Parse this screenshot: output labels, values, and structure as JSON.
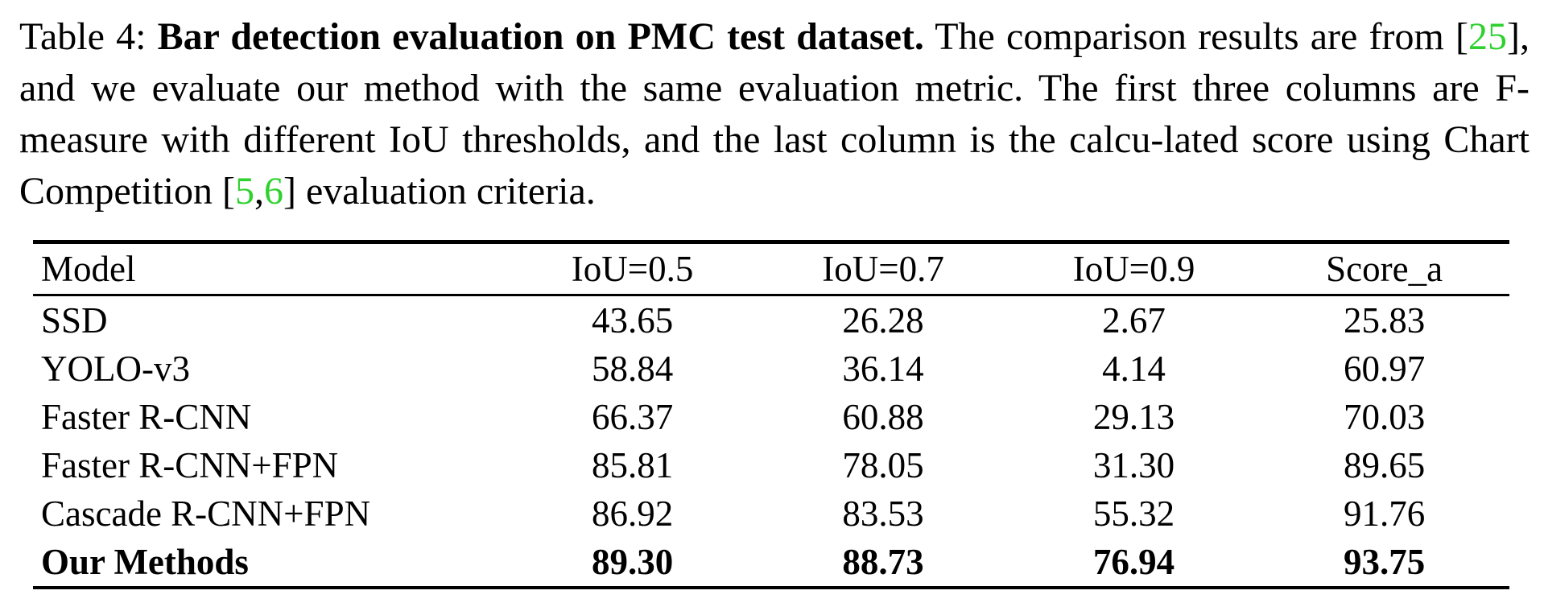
{
  "caption": {
    "label": "Table 4:",
    "title": "Bar detection evaluation on PMC test dataset.",
    "text1": "The comparison results are from [",
    "cite1": "25",
    "text2": "], and we evaluate our method with the same evaluation metric. The first three columns are F-measure with different IoU thresholds, and the last column is the calcu-lated score using Chart Competition [",
    "cite2": "5",
    "sep": ",",
    "cite3": "6",
    "text3": "] evaluation criteria.",
    "cite_color": "#2ed12e"
  },
  "table": {
    "headers": [
      "Model",
      "IoU=0.5",
      "IoU=0.7",
      "IoU=0.9",
      "Score_a"
    ],
    "rows": [
      {
        "model": "SSD",
        "iou05": "43.65",
        "iou07": "26.28",
        "iou09": "2.67",
        "score": "25.83"
      },
      {
        "model": "YOLO-v3",
        "iou05": "58.84",
        "iou07": "36.14",
        "iou09": "4.14",
        "score": "60.97"
      },
      {
        "model": "Faster R-CNN",
        "iou05": "66.37",
        "iou07": "60.88",
        "iou09": "29.13",
        "score": "70.03"
      },
      {
        "model": "Faster R-CNN+FPN",
        "iou05": "85.81",
        "iou07": "78.05",
        "iou09": "31.30",
        "score": "89.65"
      },
      {
        "model": "Cascade R-CNN+FPN",
        "iou05": "86.92",
        "iou07": "83.53",
        "iou09": "55.32",
        "score": "91.76"
      },
      {
        "model": "Our Methods",
        "iou05": "89.30",
        "iou07": "88.73",
        "iou09": "76.94",
        "score": "93.75"
      }
    ]
  }
}
